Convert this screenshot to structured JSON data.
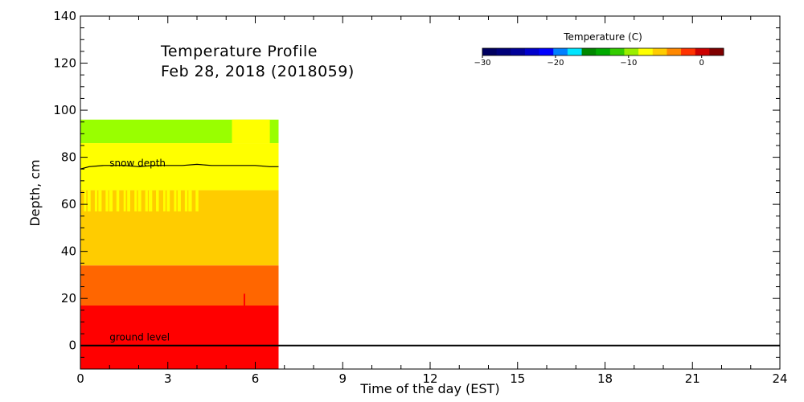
{
  "chart_data": {
    "type": "heatmap",
    "title": "Temperature Profile",
    "subtitle": "Feb 28, 2018 (2018059)",
    "xlabel": "Time of the day (EST)",
    "ylabel": "Depth, cm",
    "xlim": [
      0,
      24
    ],
    "ylim": [
      -10,
      140
    ],
    "x_ticks": [
      "0",
      "3",
      "6",
      "9",
      "12",
      "15",
      "18",
      "21",
      "24"
    ],
    "y_ticks": [
      "0",
      "20",
      "40",
      "60",
      "80",
      "100",
      "120",
      "140"
    ],
    "colorbar": {
      "title": "Temperature (C)",
      "ticks": [
        "-30",
        "-20",
        "-10",
        "0"
      ],
      "range": [
        -30,
        3
      ],
      "colors": [
        "#000060",
        "#00007a",
        "#000099",
        "#0000cc",
        "#0000ff",
        "#0080ff",
        "#00e5ff",
        "#008800",
        "#00aa00",
        "#33cc00",
        "#99ee00",
        "#ffff00",
        "#ffcc00",
        "#ff8800",
        "#ff3300",
        "#cc0000",
        "#800000"
      ]
    },
    "data_extent_hours": [
      0,
      6.8
    ],
    "layers": [
      {
        "depth_range": [
          86,
          96
        ],
        "temp_c": -6,
        "color": "#99ff00"
      },
      {
        "depth_range": [
          66,
          86
        ],
        "temp_c": -3,
        "color": "#ffff00"
      },
      {
        "depth_range": [
          34,
          66
        ],
        "temp_c": -2,
        "color": "#ffcc00"
      },
      {
        "depth_range": [
          17,
          34
        ],
        "temp_c": -1,
        "color": "#ff6600"
      },
      {
        "depth_range": [
          -10,
          17
        ],
        "temp_c": 0,
        "color": "#ff0000"
      }
    ],
    "features": [
      {
        "time_range": [
          5.2,
          6.5
        ],
        "depth_range": [
          86,
          96
        ],
        "color": "#ffff00"
      },
      {
        "time_range": [
          0,
          4.2
        ],
        "depth_range": [
          57,
          66
        ],
        "color": "#ffff00",
        "pattern": "intermittent"
      },
      {
        "time_range": [
          5.6,
          5.65
        ],
        "depth_range": [
          17,
          22
        ],
        "color": "#ff0000"
      }
    ],
    "snow_depth": {
      "label": "snow depth",
      "x": [
        0,
        0.3,
        0.8,
        1.5,
        2.0,
        2.5,
        3.0,
        3.5,
        4.0,
        4.5,
        5.0,
        5.5,
        6.0,
        6.5,
        6.8
      ],
      "y": [
        75,
        76,
        76.5,
        76.5,
        76,
        76.5,
        76.5,
        76.5,
        77,
        76.5,
        76.5,
        76.5,
        76.5,
        76,
        76
      ]
    },
    "ground_level": {
      "label": "ground level",
      "y": 0
    }
  }
}
